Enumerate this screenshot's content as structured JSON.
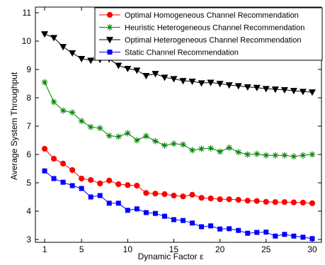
{
  "chart_data": {
    "type": "line",
    "title": "",
    "xlabel": "Dynamic Factor ε",
    "ylabel": "Average System Throughput",
    "xlim": [
      0,
      31
    ],
    "ylim": [
      2.9,
      11.2
    ],
    "xticks": [
      1,
      5,
      10,
      15,
      20,
      25,
      30
    ],
    "yticks": [
      3,
      4,
      5,
      6,
      7,
      8,
      9,
      10,
      11
    ],
    "grid": false,
    "legend_position": "top-right",
    "x": [
      1,
      2,
      3,
      4,
      5,
      6,
      7,
      8,
      9,
      10,
      11,
      12,
      13,
      14,
      15,
      16,
      17,
      18,
      19,
      20,
      21,
      22,
      23,
      24,
      25,
      26,
      27,
      28,
      29,
      30
    ],
    "series": [
      {
        "name": "Optimal Homogeneous Channel Recommendation",
        "color": "#ff0000",
        "marker": "circle",
        "values": [
          6.2,
          5.85,
          5.68,
          5.45,
          5.15,
          5.1,
          4.98,
          5.08,
          4.95,
          4.92,
          4.9,
          4.64,
          4.62,
          4.6,
          4.55,
          4.52,
          4.58,
          4.47,
          4.45,
          4.42,
          4.42,
          4.4,
          4.37,
          4.36,
          4.33,
          4.32,
          4.32,
          4.31,
          4.3,
          4.28
        ]
      },
      {
        "name": "Heuristic Heterogeneous Channel Recommendation",
        "color": "#008000",
        "marker": "star",
        "values": [
          8.55,
          7.85,
          7.55,
          7.48,
          7.18,
          6.97,
          6.93,
          6.66,
          6.63,
          6.75,
          6.5,
          6.65,
          6.47,
          6.32,
          6.38,
          6.35,
          6.15,
          6.2,
          6.22,
          6.1,
          6.24,
          6.08,
          6.0,
          6.02,
          5.97,
          5.97,
          5.97,
          5.93,
          5.97,
          6.0
        ]
      },
      {
        "name": "Optimal Heterogeneous Channel Recommendation",
        "color": "#000000",
        "marker": "triangle-down",
        "values": [
          10.25,
          10.12,
          9.8,
          9.58,
          9.38,
          9.32,
          9.35,
          9.37,
          9.14,
          9.03,
          8.97,
          8.78,
          8.85,
          8.72,
          8.67,
          8.6,
          8.58,
          8.52,
          8.54,
          8.5,
          8.45,
          8.42,
          8.38,
          8.36,
          8.32,
          8.3,
          8.28,
          8.25,
          8.22,
          8.2
        ]
      },
      {
        "name": "Static Channel Recommendation",
        "color": "#0000ff",
        "marker": "square",
        "values": [
          5.42,
          5.15,
          5.02,
          4.9,
          4.8,
          4.5,
          4.55,
          4.28,
          4.28,
          4.03,
          4.08,
          3.95,
          3.92,
          3.82,
          3.7,
          3.67,
          3.58,
          3.45,
          3.48,
          3.37,
          3.38,
          3.32,
          3.22,
          3.25,
          3.26,
          3.12,
          3.18,
          3.12,
          3.08,
          3.03
        ]
      }
    ]
  }
}
